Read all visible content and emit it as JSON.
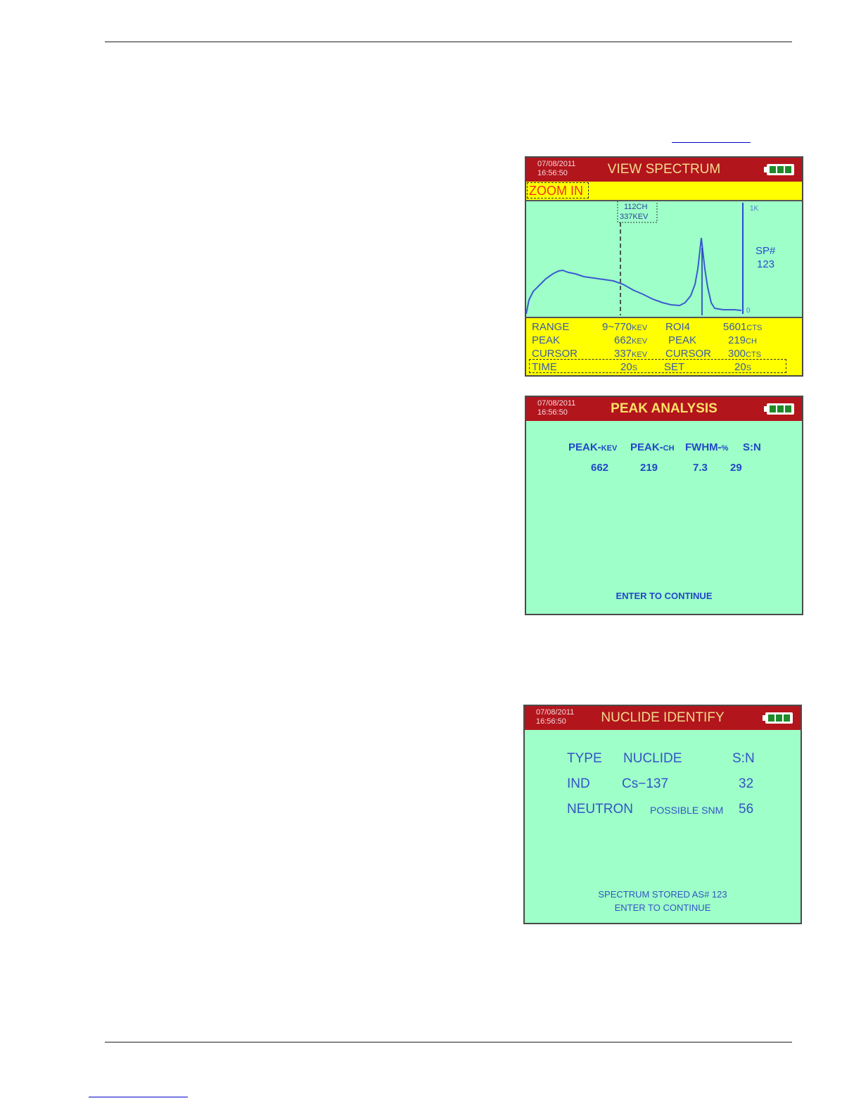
{
  "view_spectrum": {
    "date": "07/08/2011",
    "time": "16:56:50",
    "title": "VIEW SPECTRUM",
    "zoom_label": "ZOOM IN",
    "cursor_ch": "112CH",
    "cursor_kev": "337KEV",
    "y_top": "1K",
    "y_bottom": "0",
    "sp_label": "SP#",
    "sp_number": "123",
    "range_label": "RANGE",
    "range_value": "9~770",
    "range_unit": "KEV",
    "roi_label": "ROI4",
    "roi_value": "5601",
    "roi_unit": "CTS",
    "peak_label": "PEAK",
    "peak_value": "662",
    "peak_unit": "KEV",
    "peak2_label": "PEAK",
    "peak2_value": "219",
    "peak2_unit": "CH",
    "cursor_label": "CURSOR",
    "cursor_value": "337",
    "cursor_unit": "KEV",
    "cursor2_label": "CURSOR",
    "cursor2_value": "300",
    "cursor2_unit": "CTS",
    "time_label": "TIME",
    "time_value": "20",
    "time_unit": "S",
    "set_label": "SET",
    "set_value": "20",
    "set_unit": "S"
  },
  "peak_analysis": {
    "date": "07/08/2011",
    "time": "16:56:50",
    "title": "PEAK ANALYSIS",
    "col1": "PEAK-",
    "col1_unit": "KEV",
    "col2": "PEAK-",
    "col2_unit": "CH",
    "col3": "FWHM-",
    "col3_unit": "%",
    "col4": "S:N",
    "v1": "662",
    "v2": "219",
    "v3": "7.3",
    "v4": "29",
    "footer": "ENTER TO CONTINUE"
  },
  "nuclide_identify": {
    "date": "07/08/2011",
    "time": "16:56:50",
    "title": "NUCLIDE IDENTIFY",
    "h_type": "TYPE",
    "h_nuclide": "NUCLIDE",
    "h_sn": "S:N",
    "r1_type": "IND",
    "r1_nuclide": "Cs−137",
    "r1_sn": "32",
    "r2_type": "NEUTRON",
    "r2_nuclide": "POSSIBLE SNM",
    "r2_sn": "56",
    "footer1": "SPECTRUM STORED AS#  123",
    "footer2": "ENTER TO CONTINUE"
  },
  "colors": {
    "screen_bg": "#9effc9",
    "title_bar": "#b3151d",
    "info_panel": "#ffff00",
    "trace": "#3a5ad0"
  },
  "icons": [
    "battery-icon"
  ]
}
